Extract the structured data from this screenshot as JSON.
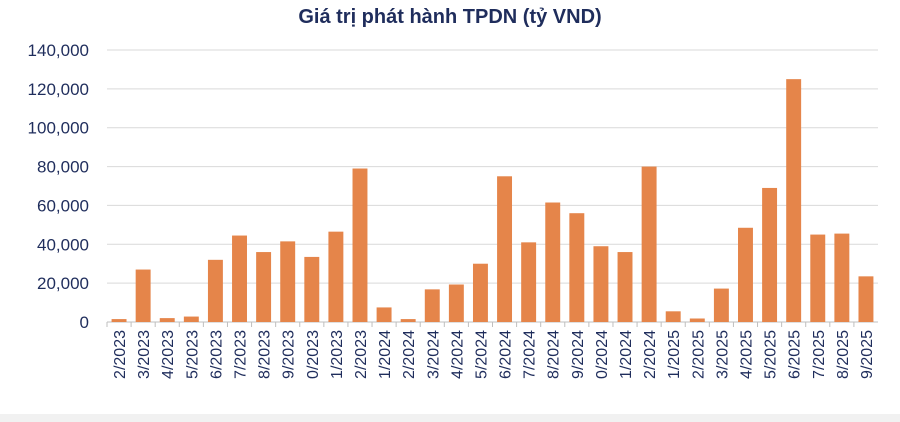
{
  "chart_data": {
    "type": "bar",
    "title": "Giá trị phát hành TPDN (tỷ VND)",
    "xlabel": "",
    "ylabel": "",
    "ylim": [
      0,
      140000
    ],
    "yticks": [
      "0",
      "20,000",
      "40,000",
      "60,000",
      "80,000",
      "100,000",
      "120,000",
      "140,000"
    ],
    "grid": true,
    "bar_color": "#E5854A",
    "grid_color": "#d9d9d9",
    "text_color": "#1f2d5c",
    "categories": [
      "2/2023",
      "3/2023",
      "4/2023",
      "5/2023",
      "6/2023",
      "7/2023",
      "8/2023",
      "9/2023",
      "0/2023",
      "1/2023",
      "2/2023",
      "1/2024",
      "2/2024",
      "3/2024",
      "4/2024",
      "5/2024",
      "6/2024",
      "7/2024",
      "8/2024",
      "9/2024",
      "0/2024",
      "1/2024",
      "2/2024",
      "1/2025",
      "2/2025",
      "3/2025",
      "4/2025",
      "5/2025",
      "6/2025",
      "7/2025",
      "8/2025",
      "9/2025"
    ],
    "values": [
      1500,
      27000,
      2000,
      2800,
      32000,
      44500,
      36000,
      41500,
      33500,
      46500,
      79000,
      7500,
      1500,
      16800,
      19300,
      30000,
      75000,
      41000,
      61500,
      56000,
      39000,
      36000,
      80000,
      5500,
      1800,
      17200,
      48500,
      69000,
      125000,
      45000,
      45500,
      23500
    ]
  }
}
